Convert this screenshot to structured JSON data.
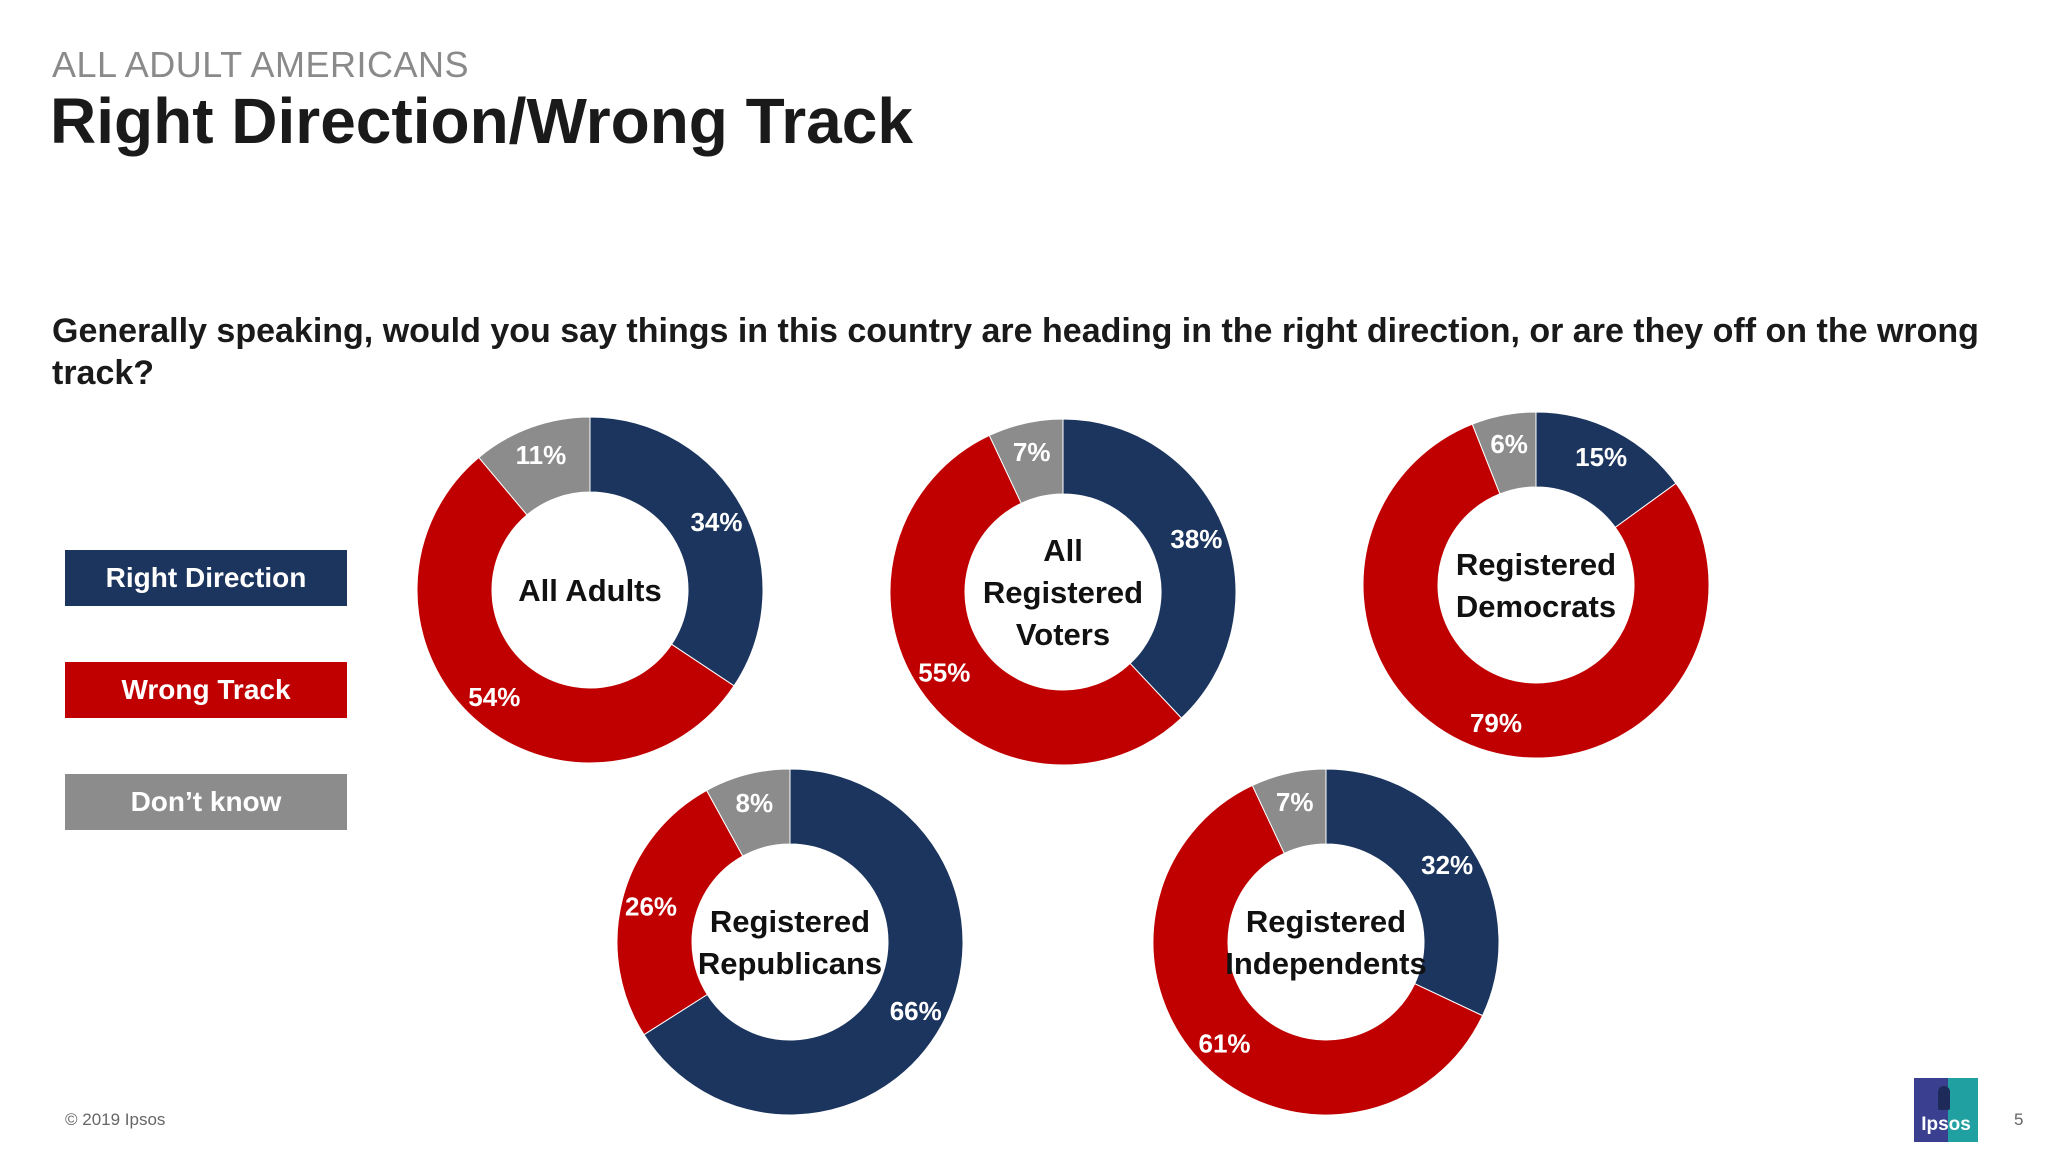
{
  "header": {
    "kicker": "ALL ADULT AMERICANS",
    "title": "Right Direction/Wrong Track"
  },
  "question": "Generally speaking, would you say things in this country are heading in the right direction, or are they off on the wrong track?",
  "colors": {
    "right_direction": "#1b355e",
    "wrong_track": "#c00000",
    "dont_know": "#8c8c8c"
  },
  "legend": [
    {
      "key": "right_direction",
      "label": "Right Direction"
    },
    {
      "key": "wrong_track",
      "label": "Wrong Track"
    },
    {
      "key": "dont_know",
      "label": "Don’t know"
    }
  ],
  "chart_data": {
    "type": "pie",
    "variant": "donut",
    "series_names": [
      "Right Direction",
      "Wrong Track",
      "Don’t know"
    ],
    "groups": [
      {
        "label": "All Adults",
        "values": [
          34,
          54,
          11
        ],
        "value_labels": [
          "34%",
          "54%",
          "11%"
        ]
      },
      {
        "label": "All Registered Voters",
        "values": [
          38,
          55,
          7
        ],
        "value_labels": [
          "38%",
          "55%",
          "7%"
        ]
      },
      {
        "label": "Registered Democrats",
        "values": [
          15,
          79,
          6
        ],
        "value_labels": [
          "15%",
          "79%",
          "6%"
        ]
      },
      {
        "label": "Registered Republicans",
        "values": [
          66,
          26,
          8
        ],
        "value_labels": [
          "66%",
          "26%",
          "8%"
        ]
      },
      {
        "label": "Registered Independents",
        "values": [
          32,
          61,
          7
        ],
        "value_labels": [
          "32%",
          "61%",
          "7%"
        ]
      }
    ]
  },
  "footer": {
    "copyright": "© 2019 Ipsos",
    "page_number": "5",
    "logo_text": "Ipsos"
  }
}
